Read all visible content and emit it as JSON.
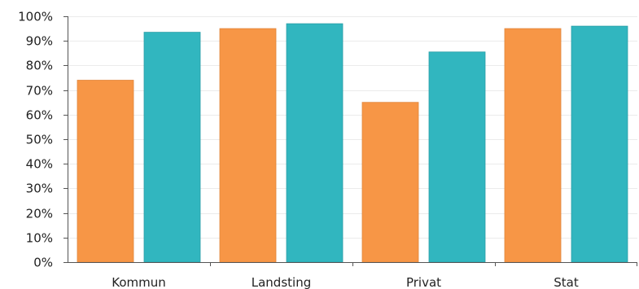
{
  "chart_data": {
    "type": "bar",
    "title": "",
    "xlabel": "",
    "ylabel": "",
    "categories": [
      "Kommun",
      "Landsting",
      "Privat",
      "Stat"
    ],
    "series": [
      {
        "color": "#F79646",
        "values": [
          74,
          95,
          65,
          95
        ]
      },
      {
        "color": "#31B6BF",
        "values": [
          93.5,
          97,
          85.5,
          96
        ]
      }
    ],
    "ylim": [
      0,
      100
    ],
    "yticks": [
      0,
      10,
      20,
      30,
      40,
      50,
      60,
      70,
      80,
      90,
      100
    ],
    "ytick_labels": [
      "0%",
      "10%",
      "20%",
      "30%",
      "40%",
      "50%",
      "60%",
      "70%",
      "80%",
      "90%",
      "100%"
    ],
    "grid": true,
    "legend": "none"
  }
}
